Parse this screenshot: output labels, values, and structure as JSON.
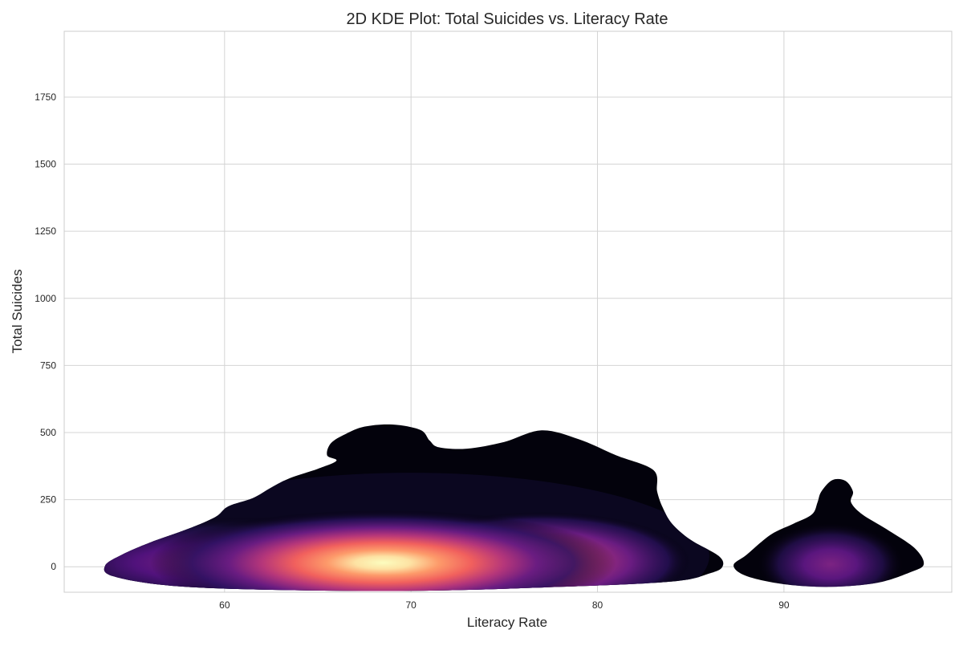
{
  "chart_data": {
    "type": "heatmap",
    "subtype": "kde-2d",
    "title": "2D KDE Plot: Total Suicides vs. Literacy Rate",
    "xlabel": "Literacy Rate",
    "ylabel": "Total Suicides",
    "xlim": [
      51.4,
      99.0
    ],
    "ylim": [
      -95,
      1995
    ],
    "x_ticks": [
      60,
      70,
      80,
      90
    ],
    "y_ticks": [
      0,
      250,
      500,
      750,
      1000,
      1250,
      1500,
      1750
    ],
    "grid": true,
    "colormap": "magma",
    "clusters": [
      {
        "x_center": 68.5,
        "y_center": 15,
        "peak": 1.0
      },
      {
        "x_center": 77.0,
        "y_center": 20,
        "peak": 0.75
      },
      {
        "x_center": 60.0,
        "y_center": 15,
        "peak": 0.45
      },
      {
        "x_center": 92.5,
        "y_center": 10,
        "peak": 0.35
      }
    ],
    "outer_contour_left": [
      [
        53.6,
        5
      ],
      [
        54.5,
        45
      ],
      [
        56.0,
        90
      ],
      [
        58.0,
        140
      ],
      [
        59.5,
        185
      ],
      [
        60.2,
        225
      ],
      [
        61.5,
        255
      ],
      [
        62.5,
        295
      ],
      [
        63.5,
        330
      ],
      [
        65.0,
        365
      ],
      [
        66.0,
        395
      ],
      [
        65.5,
        415
      ],
      [
        65.7,
        460
      ],
      [
        66.5,
        495
      ],
      [
        67.5,
        522
      ],
      [
        69.0,
        530
      ],
      [
        70.5,
        510
      ],
      [
        71.0,
        470
      ],
      [
        71.5,
        445
      ],
      [
        73.0,
        440
      ],
      [
        75.0,
        465
      ],
      [
        77.0,
        508
      ],
      [
        79.0,
        475
      ],
      [
        81.0,
        415
      ],
      [
        83.0,
        360
      ],
      [
        83.2,
        280
      ],
      [
        83.5,
        220
      ],
      [
        84.0,
        160
      ],
      [
        85.0,
        100
      ],
      [
        86.5,
        40
      ],
      [
        86.7,
        0
      ],
      [
        86.0,
        -25
      ],
      [
        84.0,
        -55
      ],
      [
        78.0,
        -75
      ],
      [
        70.0,
        -90
      ],
      [
        62.0,
        -85
      ],
      [
        57.0,
        -70
      ],
      [
        54.0,
        -35
      ]
    ],
    "outer_contour_right": [
      [
        87.3,
        5
      ],
      [
        88.0,
        45
      ],
      [
        89.3,
        120
      ],
      [
        90.5,
        160
      ],
      [
        91.5,
        195
      ],
      [
        91.8,
        240
      ],
      [
        92.0,
        280
      ],
      [
        92.6,
        323
      ],
      [
        93.3,
        320
      ],
      [
        93.7,
        280
      ],
      [
        93.6,
        240
      ],
      [
        94.2,
        195
      ],
      [
        95.5,
        140
      ],
      [
        97.0,
        70
      ],
      [
        97.5,
        10
      ],
      [
        96.8,
        -20
      ],
      [
        95.0,
        -60
      ],
      [
        92.5,
        -75
      ],
      [
        90.0,
        -65
      ],
      [
        88.0,
        -35
      ]
    ]
  }
}
